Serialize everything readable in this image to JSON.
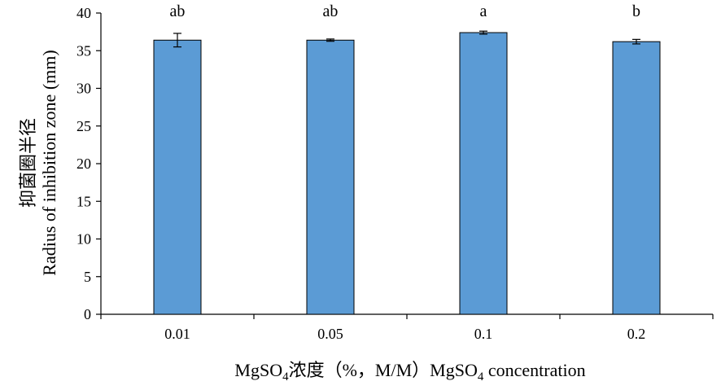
{
  "chart_data": {
    "type": "bar",
    "categories": [
      "0.01",
      "0.05",
      "0.1",
      "0.2"
    ],
    "values": [
      36.4,
      36.4,
      37.4,
      36.2
    ],
    "errors": [
      0.9,
      0.15,
      0.2,
      0.3
    ],
    "significance": [
      "ab",
      "ab",
      "a",
      "b"
    ],
    "ylim": [
      0,
      40
    ],
    "yticks": [
      "0",
      "5",
      "10",
      "15",
      "20",
      "25",
      "30",
      "35",
      "40"
    ],
    "ylabel_cn": "抑菌圈半径",
    "ylabel_en": "Radius of inhibition zone (mm)",
    "xlabel": {
      "prefix": "MgSO",
      "sub": "4",
      "middle": "浓度（%，M/M）MgSO",
      "sub2": "4",
      "suffix": " concentration"
    },
    "grid": false,
    "legend": "none",
    "colors": {
      "bar_fill": "#5B9BD5",
      "bar_stroke": "#000000",
      "axis": "#000000"
    }
  }
}
